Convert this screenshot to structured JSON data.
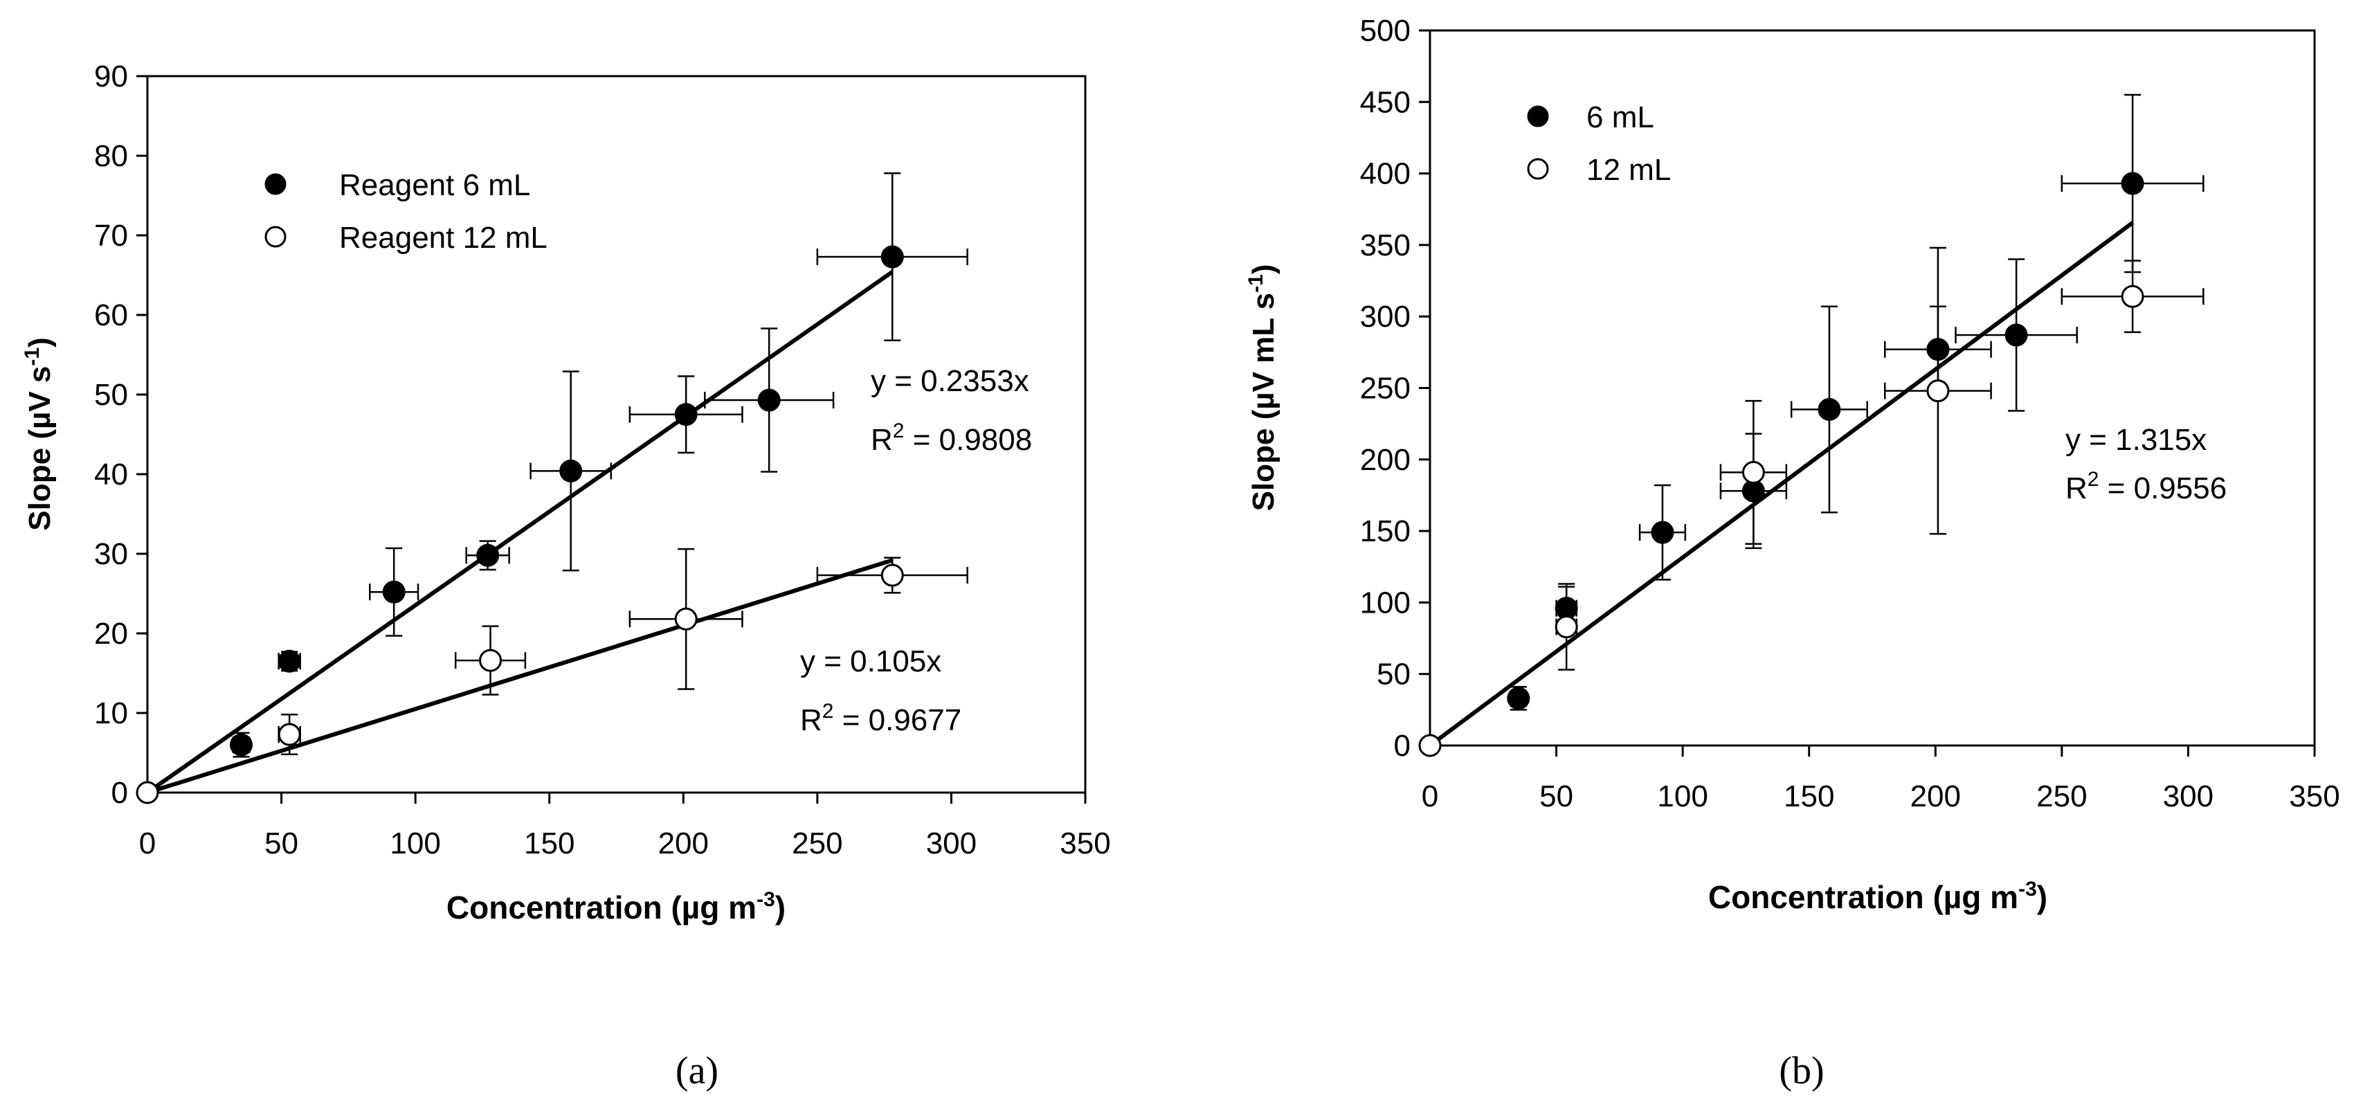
{
  "chart_data": [
    {
      "panel_label": "(a)",
      "type": "scatter",
      "xlabel": "Concentration (µg m",
      "xlabel_sup": "-3",
      "xlabel_end": ")",
      "ylabel": "Slope (µV s",
      "ylabel_sup": "-1",
      "ylabel_end": ")",
      "xlim": [
        0,
        350
      ],
      "ylim": [
        0,
        90
      ],
      "xticks": [
        0,
        50,
        100,
        150,
        200,
        250,
        300,
        350
      ],
      "yticks": [
        0,
        10,
        20,
        30,
        40,
        50,
        60,
        70,
        80,
        90
      ],
      "legend": {
        "placement": "top-left",
        "entries": [
          "Reagent 6 mL",
          "Reagent 12 mL"
        ]
      },
      "series": [
        {
          "name": "Reagent 6 mL",
          "marker": "filled",
          "x": [
            35,
            53,
            92,
            127,
            158,
            201,
            232,
            278
          ],
          "y": [
            6,
            16.5,
            25.2,
            29.8,
            40.4,
            47.5,
            49.3,
            67.3
          ],
          "xerr": [
            3,
            4,
            9,
            8,
            15,
            21,
            24,
            28
          ],
          "yerr": [
            1.5,
            1.2,
            5.5,
            1.8,
            12.5,
            4.8,
            9,
            10.5
          ],
          "fit": {
            "slope": 0.2353,
            "x_end": 278,
            "equation": "y = 0.2353x",
            "r2_label": "R",
            "r2_sup": "2",
            "r2_value": " = 0.9808"
          }
        },
        {
          "name": "Reagent 12 mL",
          "marker": "open",
          "x": [
            0,
            53,
            128,
            201,
            278
          ],
          "y": [
            0,
            7.3,
            16.6,
            21.8,
            27.3
          ],
          "xerr": [
            0,
            4,
            13,
            21,
            28
          ],
          "yerr": [
            0,
            2.5,
            4.3,
            8.8,
            2.2
          ],
          "fit": {
            "slope": 0.105,
            "x_end": 278,
            "equation": "y = 0.105x",
            "r2_label": "R",
            "r2_sup": "2",
            "r2_value": " = 0.9677"
          }
        }
      ]
    },
    {
      "panel_label": "(b)",
      "type": "scatter",
      "xlabel": "Concentration (µg m",
      "xlabel_sup": "-3",
      "xlabel_end": ")",
      "ylabel": "Slope (µV mL s",
      "ylabel_sup": "-1",
      "ylabel_end": ")",
      "xlim": [
        0,
        350
      ],
      "ylim": [
        0,
        500
      ],
      "xticks": [
        0,
        50,
        100,
        150,
        200,
        250,
        300,
        350
      ],
      "yticks": [
        0,
        50,
        100,
        150,
        200,
        250,
        300,
        350,
        400,
        450,
        500
      ],
      "legend": {
        "placement": "top-left",
        "entries": [
          "6 mL",
          "12 mL"
        ]
      },
      "series": [
        {
          "name": "6 mL",
          "marker": "filled",
          "x": [
            35,
            54,
            92,
            128,
            158,
            201,
            232,
            278
          ],
          "y": [
            33,
            96,
            149,
            178,
            235,
            277,
            287,
            393
          ],
          "xerr": [
            3,
            4,
            9,
            13,
            15,
            21,
            24,
            28
          ],
          "yerr": [
            8,
            15,
            33,
            40,
            72,
            30,
            53,
            62
          ],
          "fit": {
            "slope": 1.315,
            "x_end": 278,
            "equation": "y = 1.315x",
            "r2_label": "R",
            "r2_sup": "2",
            "r2_value": " = 0.9556"
          }
        },
        {
          "name": "12 mL",
          "marker": "open",
          "x": [
            0,
            54,
            128,
            201,
            278
          ],
          "y": [
            0,
            83,
            191,
            248,
            314
          ],
          "xerr": [
            0,
            4,
            13,
            21,
            28
          ],
          "yerr": [
            0,
            30,
            50,
            100,
            25
          ]
        }
      ]
    }
  ]
}
